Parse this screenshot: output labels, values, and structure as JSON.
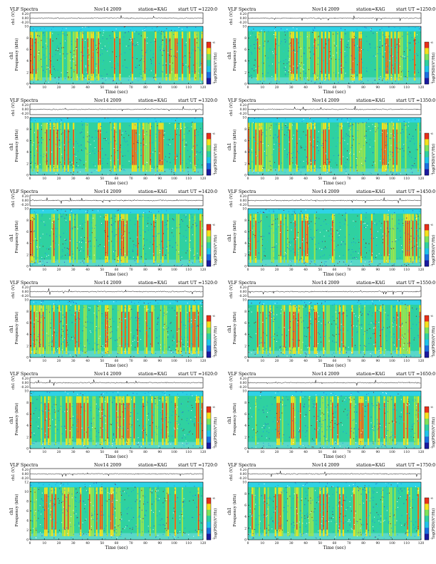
{
  "common": {
    "title_prefix": "VLF Spectra",
    "date": "Nov14 2009",
    "station": "station=KAG",
    "start_prefix": "start UT =",
    "waveform_ylabel": "ch1 (V)",
    "waveform_ticks": [
      "0.20",
      "0.00",
      "-0.20"
    ],
    "spec_ylabel_top": "ch1",
    "spec_ylabel_bottom": "Frequency (kHz)",
    "colorbar_label": "log(PSD)(V²/Hz)",
    "colorbar_ticks": [
      "-6",
      "-7"
    ],
    "xlabel": "Time (sec)"
  },
  "chart_data": [
    {
      "type": "heatmap",
      "start_ut": "1220:0",
      "x_ticks": [
        "0",
        "10",
        "20",
        "30",
        "40",
        "50",
        "60",
        "70",
        "80",
        "90",
        "100",
        "110",
        "120"
      ],
      "y_ticks": [
        "0",
        "2",
        "4",
        "6",
        "8",
        "10"
      ],
      "xlim": [
        0,
        120
      ],
      "ylim": [
        0,
        10
      ],
      "waveform_ylim": [
        -0.2,
        0.2
      ]
    },
    {
      "type": "heatmap",
      "start_ut": "1250:0",
      "x_ticks": [
        "0",
        "10",
        "20",
        "30",
        "40",
        "50",
        "60",
        "70",
        "80",
        "90",
        "100",
        "110",
        "120"
      ],
      "y_ticks": [
        "0",
        "2",
        "4",
        "6",
        "8",
        "10"
      ],
      "xlim": [
        0,
        120
      ],
      "ylim": [
        0,
        10
      ],
      "waveform_ylim": [
        -0.2,
        0.2
      ]
    },
    {
      "type": "heatmap",
      "start_ut": "1320:0",
      "x_ticks": [
        "0",
        "10",
        "20",
        "30",
        "40",
        "50",
        "60",
        "70",
        "80",
        "90",
        "100",
        "110",
        "120"
      ],
      "y_ticks": [
        "0",
        "2",
        "4",
        "6",
        "8",
        "10"
      ],
      "xlim": [
        0,
        120
      ],
      "ylim": [
        0,
        10
      ],
      "waveform_ylim": [
        -0.2,
        0.2
      ]
    },
    {
      "type": "heatmap",
      "start_ut": "1350:0",
      "x_ticks": [
        "0",
        "10",
        "20",
        "30",
        "40",
        "50",
        "60",
        "70",
        "80",
        "90",
        "100",
        "110",
        "120"
      ],
      "y_ticks": [
        "0",
        "2",
        "4",
        "6",
        "8",
        "10"
      ],
      "xlim": [
        0,
        120
      ],
      "ylim": [
        0,
        10
      ],
      "waveform_ylim": [
        -0.2,
        0.2
      ]
    },
    {
      "type": "heatmap",
      "start_ut": "1420:0",
      "x_ticks": [
        "0",
        "10",
        "20",
        "30",
        "40",
        "50",
        "60",
        "70",
        "80",
        "90",
        "100",
        "110",
        "120"
      ],
      "y_ticks": [
        "0",
        "2",
        "4",
        "6",
        "8",
        "10"
      ],
      "xlim": [
        0,
        120
      ],
      "ylim": [
        0,
        10
      ],
      "waveform_ylim": [
        -0.2,
        0.2
      ]
    },
    {
      "type": "heatmap",
      "start_ut": "1450:0",
      "x_ticks": [
        "0",
        "10",
        "20",
        "30",
        "40",
        "50",
        "60",
        "70",
        "80",
        "90",
        "100",
        "110",
        "120"
      ],
      "y_ticks": [
        "0",
        "2",
        "4",
        "6",
        "8",
        "10"
      ],
      "xlim": [
        0,
        120
      ],
      "ylim": [
        0,
        10
      ],
      "waveform_ylim": [
        -0.2,
        0.2
      ]
    },
    {
      "type": "heatmap",
      "start_ut": "1520:0",
      "x_ticks": [
        "0",
        "10",
        "20",
        "30",
        "40",
        "50",
        "60",
        "70",
        "80",
        "90",
        "100",
        "110",
        "120"
      ],
      "y_ticks": [
        "0",
        "2",
        "4",
        "6",
        "8",
        "10"
      ],
      "xlim": [
        0,
        120
      ],
      "ylim": [
        0,
        10
      ],
      "waveform_ylim": [
        -0.2,
        0.2
      ]
    },
    {
      "type": "heatmap",
      "start_ut": "1550:0",
      "x_ticks": [
        "0",
        "10",
        "20",
        "30",
        "40",
        "50",
        "60",
        "70",
        "80",
        "90",
        "100",
        "110",
        "120"
      ],
      "y_ticks": [
        "0",
        "2",
        "4",
        "6",
        "8",
        "10"
      ],
      "xlim": [
        0,
        120
      ],
      "ylim": [
        0,
        10
      ],
      "waveform_ylim": [
        -0.2,
        0.2
      ]
    },
    {
      "type": "heatmap",
      "start_ut": "1620:0",
      "x_ticks": [
        "0",
        "10",
        "20",
        "30",
        "40",
        "50",
        "60",
        "70",
        "80",
        "90",
        "100",
        "110",
        "120"
      ],
      "y_ticks": [
        "0",
        "2",
        "4",
        "6",
        "8",
        "10"
      ],
      "xlim": [
        0,
        120
      ],
      "ylim": [
        0,
        10
      ],
      "waveform_ylim": [
        -0.2,
        0.2
      ]
    },
    {
      "type": "heatmap",
      "start_ut": "1650:0",
      "x_ticks": [
        "0",
        "10",
        "20",
        "30",
        "40",
        "50",
        "60",
        "70",
        "80",
        "90",
        "100",
        "110",
        "120"
      ],
      "y_ticks": [
        "0",
        "2",
        "4",
        "6",
        "8",
        "10"
      ],
      "xlim": [
        0,
        120
      ],
      "ylim": [
        0,
        10
      ],
      "waveform_ylim": [
        -0.2,
        0.2
      ]
    },
    {
      "type": "heatmap",
      "start_ut": "1720:0",
      "x_ticks": [
        "0",
        "10",
        "20",
        "30",
        "40",
        "50",
        "60",
        "70",
        "80",
        "90",
        "100",
        "110",
        "120"
      ],
      "y_ticks": [
        "0",
        "2",
        "4",
        "6",
        "8",
        "10",
        "12"
      ],
      "xlim": [
        0,
        120
      ],
      "ylim": [
        0,
        12
      ],
      "waveform_ylim": [
        -0.2,
        0.2
      ]
    },
    {
      "type": "heatmap",
      "start_ut": "1750:0",
      "x_ticks": [
        "0",
        "10",
        "20",
        "30",
        "40",
        "50",
        "60",
        "70",
        "80",
        "90",
        "100",
        "110",
        "120"
      ],
      "y_ticks": [
        "0",
        "2",
        "4",
        "6",
        "8",
        "10"
      ],
      "xlim": [
        0,
        120
      ],
      "ylim": [
        0,
        10
      ],
      "waveform_ylim": [
        -0.2,
        0.2
      ]
    }
  ]
}
